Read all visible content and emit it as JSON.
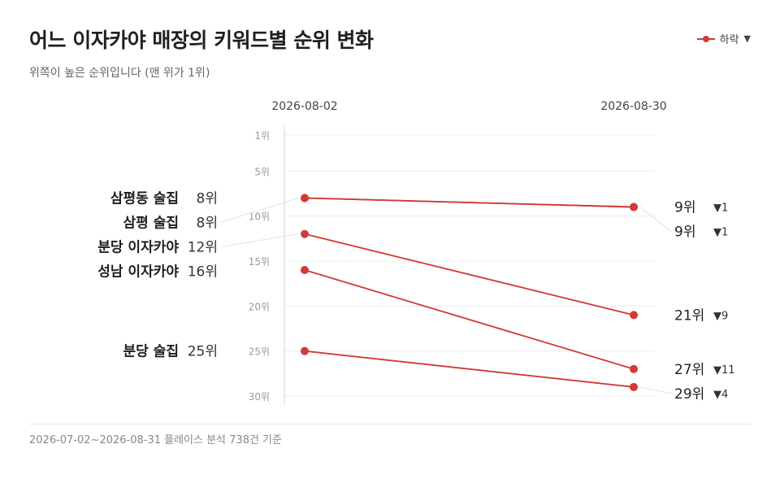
{
  "header": {
    "title": "어느 이자카야 매장의 키워드별 순위 변화",
    "subtitle": "위쪽이 높은 순위입니다 (맨 위가 1위)"
  },
  "legend": {
    "label": "하락",
    "arrow": "▼",
    "color": "#d13a36"
  },
  "footer": {
    "note": "2026-07-02~2026-08-31 플레이스 분석 738건 기준"
  },
  "chart_data": {
    "type": "line",
    "subtype": "slope",
    "x": [
      "2026-08-02",
      "2026-08-30"
    ],
    "y_axis": {
      "reversed": true,
      "ylim": [
        1,
        30
      ],
      "ticks": [
        1,
        5,
        10,
        15,
        20,
        25,
        30
      ],
      "tick_labels": [
        "1위",
        "5위",
        "10위",
        "15위",
        "20위",
        "25위",
        "30위"
      ]
    },
    "grid": true,
    "legend_position": "top-right",
    "series": [
      {
        "name": "삼평동 술집",
        "values": [
          8,
          9
        ],
        "start_label": "8위",
        "end_label": "9위",
        "change": "1"
      },
      {
        "name": "삼평 술집",
        "values": [
          8,
          9
        ],
        "start_label": "8위",
        "end_label": "9위",
        "change": "1"
      },
      {
        "name": "분당 이자카야",
        "values": [
          12,
          21
        ],
        "start_label": "12위",
        "end_label": "21위",
        "change": "9"
      },
      {
        "name": "성남 이자카야",
        "values": [
          16,
          27
        ],
        "start_label": "16위",
        "end_label": "27위",
        "change": "11"
      },
      {
        "name": "분당 술집",
        "values": [
          25,
          29
        ],
        "start_label": "25위",
        "end_label": "29위",
        "change": "4"
      }
    ],
    "line_color": "#d13a36",
    "change_arrow": "▼"
  }
}
